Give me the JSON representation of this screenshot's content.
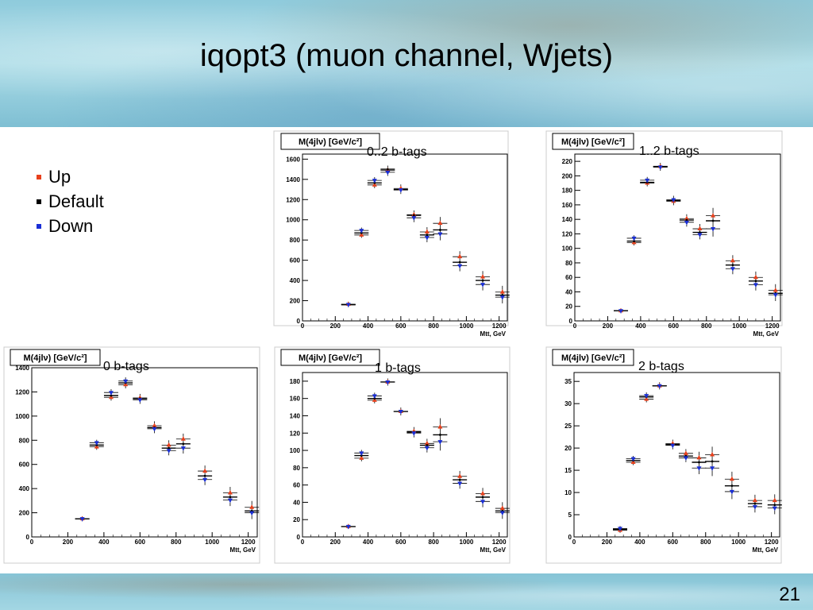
{
  "slide": {
    "title": "iqopt3 (muon channel, Wjets)",
    "page_number": "21",
    "legend": [
      {
        "label": "Up",
        "color": "#e8401c"
      },
      {
        "label": "Default",
        "color": "#000000"
      },
      {
        "label": "Down",
        "color": "#1a2fd6"
      }
    ]
  },
  "chart_data": [
    {
      "type": "scatter",
      "title": "0..2 b-tags",
      "ylabel": "M(4jlν) [GeV/c²]",
      "xlabel": "Mtt, GeV",
      "xlim": [
        0,
        1250
      ],
      "ylim": [
        0,
        1650
      ],
      "xticks": [
        0,
        200,
        400,
        600,
        800,
        1000,
        1200
      ],
      "yticks": [
        0,
        200,
        400,
        600,
        800,
        1000,
        1200,
        1400,
        1600
      ],
      "x": [
        280,
        360,
        440,
        520,
        600,
        680,
        760,
        840,
        960,
        1100,
        1220
      ],
      "series": [
        {
          "name": "Up",
          "values": [
            165,
            850,
            1345,
            1490,
            1310,
            1050,
            880,
            965,
            635,
            435,
            285
          ]
        },
        {
          "name": "Default",
          "values": [
            160,
            870,
            1365,
            1500,
            1300,
            1045,
            850,
            900,
            580,
            400,
            255
          ]
        },
        {
          "name": "Down",
          "values": [
            162,
            895,
            1390,
            1470,
            1295,
            1020,
            825,
            860,
            545,
            360,
            235
          ]
        }
      ]
    },
    {
      "type": "scatter",
      "title": "1..2 b-tags",
      "ylabel": "M(4jlν) [GeV/c²]",
      "xlabel": "Mtt, GeV",
      "xlim": [
        0,
        1250
      ],
      "ylim": [
        0,
        230
      ],
      "xticks": [
        0,
        200,
        400,
        600,
        800,
        1000,
        1200
      ],
      "yticks": [
        0,
        20,
        40,
        60,
        80,
        100,
        120,
        140,
        160,
        180,
        200,
        220
      ],
      "x": [
        280,
        360,
        440,
        520,
        600,
        680,
        760,
        840,
        960,
        1100,
        1220
      ],
      "series": [
        {
          "name": "Up",
          "values": [
            14,
            108,
            190,
            213,
            165,
            141,
            127,
            145,
            83,
            60,
            42
          ]
        },
        {
          "name": "Default",
          "values": [
            14,
            110,
            191,
            213,
            166,
            139,
            122,
            138,
            77,
            55,
            38
          ]
        },
        {
          "name": "Down",
          "values": [
            14,
            114,
            194,
            212,
            167,
            136,
            119,
            127,
            72,
            50,
            36
          ]
        }
      ]
    },
    {
      "type": "scatter",
      "title": "0 b-tags",
      "ylabel": "M(4jlν) [GeV/c²]",
      "xlabel": "Mtt, GeV",
      "xlim": [
        0,
        1250
      ],
      "ylim": [
        0,
        1400
      ],
      "xticks": [
        0,
        200,
        400,
        600,
        800,
        1000,
        1200
      ],
      "yticks": [
        0,
        200,
        400,
        600,
        800,
        1000,
        1200,
        1400
      ],
      "x": [
        280,
        360,
        440,
        520,
        600,
        680,
        760,
        840,
        960,
        1100,
        1220
      ],
      "series": [
        {
          "name": "Up",
          "values": [
            150,
            745,
            1155,
            1260,
            1150,
            920,
            760,
            810,
            545,
            365,
            245
          ]
        },
        {
          "name": "Default",
          "values": [
            150,
            760,
            1170,
            1275,
            1145,
            905,
            735,
            770,
            505,
            330,
            215
          ]
        },
        {
          "name": "Down",
          "values": [
            150,
            780,
            1195,
            1290,
            1135,
            895,
            715,
            735,
            475,
            305,
            200
          ]
        }
      ]
    },
    {
      "type": "scatter",
      "title": "1 b-tags",
      "ylabel": "M(4jlν) [GeV/c²]",
      "xlabel": "Mtt, GeV",
      "xlim": [
        0,
        1250
      ],
      "ylim": [
        0,
        190
      ],
      "xticks": [
        0,
        200,
        400,
        600,
        800,
        1000,
        1200
      ],
      "yticks": [
        0,
        20,
        40,
        60,
        80,
        100,
        120,
        140,
        160,
        180
      ],
      "x": [
        280,
        360,
        440,
        520,
        600,
        680,
        760,
        840,
        960,
        1100,
        1220
      ],
      "series": [
        {
          "name": "Up",
          "values": [
            12,
            91,
            158,
            179,
            145,
            122,
            108,
            127,
            70,
            50,
            33
          ]
        },
        {
          "name": "Default",
          "values": [
            12,
            94,
            160,
            179,
            145,
            121,
            106,
            118,
            66,
            46,
            30
          ]
        },
        {
          "name": "Down",
          "values": [
            12,
            97,
            163,
            179,
            145,
            120,
            103,
            110,
            62,
            41,
            28
          ]
        }
      ]
    },
    {
      "type": "scatter",
      "title": "2 b-tags",
      "ylabel": "M(4jlν) [GeV/c²]",
      "xlabel": "Mtt, GeV",
      "xlim": [
        0,
        1250
      ],
      "ylim": [
        0,
        37
      ],
      "xticks": [
        0,
        200,
        400,
        600,
        800,
        1000,
        1200
      ],
      "yticks": [
        0,
        5,
        10,
        15,
        20,
        25,
        30,
        35
      ],
      "x": [
        280,
        360,
        440,
        520,
        600,
        680,
        760,
        840,
        960,
        1100,
        1220
      ],
      "series": [
        {
          "name": "Up",
          "values": [
            1.5,
            16.8,
            31.0,
            34.0,
            21.0,
            18.8,
            17.8,
            18.5,
            13.0,
            8.2,
            8.2
          ]
        },
        {
          "name": "Default",
          "values": [
            1.7,
            17.2,
            31.5,
            34.0,
            20.8,
            18.2,
            16.8,
            17.0,
            11.5,
            7.5,
            7.2
          ]
        },
        {
          "name": "Down",
          "values": [
            1.9,
            17.6,
            31.8,
            34.0,
            20.6,
            17.8,
            15.5,
            15.5,
            10.2,
            6.8,
            6.5
          ]
        }
      ]
    }
  ]
}
